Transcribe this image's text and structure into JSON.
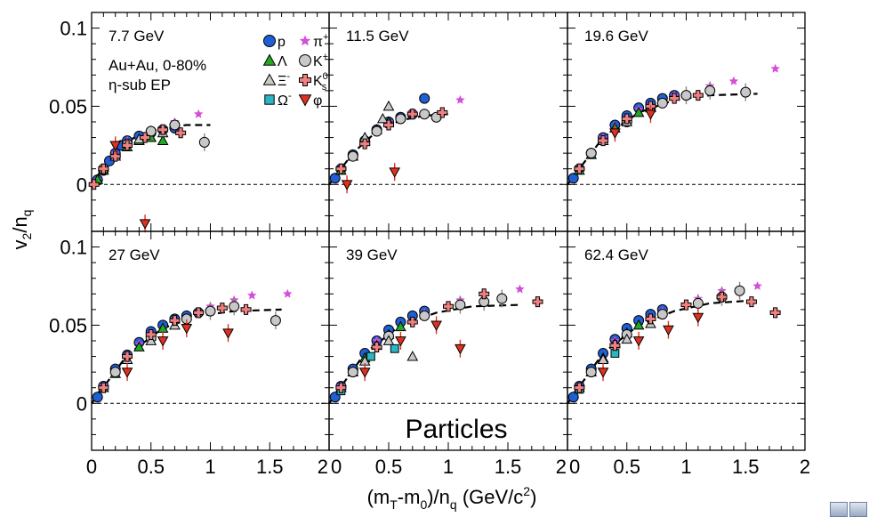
{
  "figure": {
    "ylabel_main": "v",
    "ylabel_sub": "2",
    "ylabel_sep": "/n",
    "ylabel_sub2": "q",
    "xlabel_parts": [
      "(m",
      "T",
      "-m",
      "0",
      ")/n",
      "q",
      " (GeV/c",
      "2",
      ")"
    ],
    "overlay_text": "Particles",
    "y_tick_labels": [
      "0",
      "0.05",
      "0.1"
    ],
    "x_tick_labels_first": [
      "0",
      "0.5",
      "1",
      "1.5",
      "2"
    ],
    "x_tick_labels_other": [
      "0",
      "0.5",
      "1",
      "1.5",
      "2"
    ],
    "info_lines": [
      "Au+Au,  0-80%",
      "η-sub EP"
    ],
    "legend": [
      {
        "label": "p",
        "sup": "",
        "sub": "",
        "marker": "circle",
        "color": "#1f5fd6"
      },
      {
        "label": "π",
        "sup": "+",
        "sub": "",
        "marker": "star",
        "color": "#d24fd6"
      },
      {
        "label": "Λ",
        "sup": "",
        "sub": "",
        "marker": "triangle",
        "color": "#22a822"
      },
      {
        "label": "K",
        "sup": "+",
        "sub": "",
        "marker": "open-circle",
        "color": "#c8c8c8"
      },
      {
        "label": "Ξ",
        "sup": "-",
        "sub": "",
        "marker": "triangle",
        "color": "#c8c8c8"
      },
      {
        "label": "K",
        "sup": "0",
        "sub": "s",
        "marker": "cross",
        "color": "#f08080"
      },
      {
        "label": "Ω",
        "sup": "-",
        "sub": "",
        "marker": "square",
        "color": "#2bb5c5"
      },
      {
        "label": "φ",
        "sup": "",
        "sub": "",
        "marker": "down-triangle",
        "color": "#e03020"
      }
    ]
  },
  "chart_data": [
    {
      "type": "scatter",
      "title": "7.7 GeV",
      "xlim": [
        0,
        2
      ],
      "ylim": [
        -0.03,
        0.11
      ],
      "series": [
        {
          "name": "p",
          "x": [
            0.05,
            0.1,
            0.15,
            0.2,
            0.25,
            0.3,
            0.4,
            0.5,
            0.6,
            0.7
          ],
          "y": [
            0.003,
            0.009,
            0.015,
            0.02,
            0.025,
            0.028,
            0.031,
            0.033,
            0.035,
            0.036
          ]
        },
        {
          "name": "π+",
          "x": [
            0.05,
            0.1,
            0.2,
            0.3,
            0.5,
            0.7,
            0.9
          ],
          "y": [
            0.003,
            0.01,
            0.02,
            0.028,
            0.035,
            0.04,
            0.045
          ]
        },
        {
          "name": "Λ",
          "x": [
            0.05,
            0.1,
            0.2,
            0.3,
            0.4,
            0.5,
            0.6
          ],
          "y": [
            0.003,
            0.009,
            0.018,
            0.024,
            0.028,
            0.03,
            0.028
          ]
        },
        {
          "name": "K+",
          "x": [
            0.1,
            0.3,
            0.5,
            0.7,
            0.95
          ],
          "y": [
            0.01,
            0.026,
            0.034,
            0.038,
            0.027
          ]
        },
        {
          "name": "Ξ-",
          "x": [
            0.2,
            0.4,
            0.6
          ],
          "y": [
            0.018,
            0.029,
            0.033
          ]
        },
        {
          "name": "K0s",
          "x": [
            0.02,
            0.1,
            0.2,
            0.3,
            0.45,
            0.6,
            0.75
          ],
          "y": [
            0.0,
            0.01,
            0.018,
            0.025,
            0.03,
            0.035,
            0.033
          ]
        },
        {
          "name": "φ",
          "x": [
            0.2,
            0.45
          ],
          "y": [
            0.025,
            -0.025
          ]
        }
      ],
      "fit": {
        "x": [
          0.0,
          0.2,
          0.4,
          0.6,
          0.8,
          1.0
        ],
        "y": [
          0.0,
          0.022,
          0.032,
          0.036,
          0.038,
          0.038
        ]
      }
    },
    {
      "type": "scatter",
      "title": "11.5 GeV",
      "xlim": [
        0,
        2
      ],
      "ylim": [
        -0.03,
        0.11
      ],
      "series": [
        {
          "name": "p",
          "x": [
            0.05,
            0.1,
            0.2,
            0.3,
            0.4,
            0.5,
            0.6,
            0.7,
            0.8
          ],
          "y": [
            0.004,
            0.01,
            0.019,
            0.028,
            0.035,
            0.04,
            0.043,
            0.045,
            0.055
          ]
        },
        {
          "name": "π+",
          "x": [
            0.1,
            0.3,
            0.5,
            0.7,
            1.1
          ],
          "y": [
            0.01,
            0.028,
            0.04,
            0.046,
            0.054
          ]
        },
        {
          "name": "Λ",
          "x": [
            0.1,
            0.2,
            0.3,
            0.4,
            0.5
          ],
          "y": [
            0.009,
            0.018,
            0.028,
            0.035,
            0.04
          ]
        },
        {
          "name": "K+",
          "x": [
            0.2,
            0.4,
            0.6,
            0.8,
            0.9
          ],
          "y": [
            0.018,
            0.034,
            0.042,
            0.045,
            0.043
          ]
        },
        {
          "name": "Ξ-",
          "x": [
            0.3,
            0.45,
            0.5
          ],
          "y": [
            0.03,
            0.042,
            0.05
          ]
        },
        {
          "name": "K0s",
          "x": [
            0.1,
            0.3,
            0.5,
            0.7,
            0.95
          ],
          "y": [
            0.01,
            0.026,
            0.038,
            0.045,
            0.046
          ]
        },
        {
          "name": "φ",
          "x": [
            0.15,
            0.55
          ],
          "y": [
            0.0,
            0.008
          ]
        }
      ],
      "fit": {
        "x": [
          0.0,
          0.2,
          0.4,
          0.6,
          0.8,
          1.0
        ],
        "y": [
          0.0,
          0.02,
          0.034,
          0.041,
          0.044,
          0.045
        ]
      }
    },
    {
      "type": "scatter",
      "title": "19.6 GeV",
      "xlim": [
        0,
        2
      ],
      "ylim": [
        -0.03,
        0.11
      ],
      "series": [
        {
          "name": "p",
          "x": [
            0.05,
            0.1,
            0.2,
            0.3,
            0.4,
            0.5,
            0.6,
            0.7,
            0.8,
            0.9
          ],
          "y": [
            0.004,
            0.01,
            0.02,
            0.03,
            0.038,
            0.044,
            0.049,
            0.052,
            0.055,
            0.057
          ]
        },
        {
          "name": "π+",
          "x": [
            0.1,
            0.3,
            0.6,
            0.9,
            1.2,
            1.4,
            1.75
          ],
          "y": [
            0.01,
            0.03,
            0.048,
            0.057,
            0.063,
            0.066,
            0.074
          ]
        },
        {
          "name": "Λ",
          "x": [
            0.1,
            0.2,
            0.3,
            0.4,
            0.5,
            0.6,
            0.7
          ],
          "y": [
            0.009,
            0.019,
            0.028,
            0.036,
            0.042,
            0.046,
            0.05
          ]
        },
        {
          "name": "K+",
          "x": [
            0.2,
            0.5,
            0.8,
            1.0,
            1.2,
            1.5
          ],
          "y": [
            0.02,
            0.04,
            0.052,
            0.057,
            0.06,
            0.059
          ]
        },
        {
          "name": "Ξ-",
          "x": [
            0.3,
            0.5,
            0.7
          ],
          "y": [
            0.028,
            0.04,
            0.049
          ]
        },
        {
          "name": "K0s",
          "x": [
            0.1,
            0.3,
            0.5,
            0.7,
            0.9,
            1.1
          ],
          "y": [
            0.01,
            0.028,
            0.042,
            0.05,
            0.055,
            0.057
          ]
        },
        {
          "name": "φ",
          "x": [
            0.4,
            0.7
          ],
          "y": [
            0.033,
            0.045
          ]
        }
      ],
      "fit": {
        "x": [
          0.0,
          0.3,
          0.6,
          0.9,
          1.2,
          1.6
        ],
        "y": [
          0.0,
          0.03,
          0.046,
          0.054,
          0.057,
          0.058
        ]
      }
    },
    {
      "type": "scatter",
      "title": "27 GeV",
      "xlim": [
        0,
        2
      ],
      "ylim": [
        -0.03,
        0.11
      ],
      "series": [
        {
          "name": "p",
          "x": [
            0.05,
            0.1,
            0.2,
            0.3,
            0.4,
            0.5,
            0.6,
            0.7,
            0.8,
            0.9
          ],
          "y": [
            0.004,
            0.011,
            0.022,
            0.031,
            0.039,
            0.046,
            0.05,
            0.054,
            0.056,
            0.058
          ]
        },
        {
          "name": "π+",
          "x": [
            0.1,
            0.4,
            0.7,
            1.0,
            1.2,
            1.35,
            1.65
          ],
          "y": [
            0.011,
            0.038,
            0.053,
            0.062,
            0.066,
            0.069,
            0.07
          ]
        },
        {
          "name": "Λ",
          "x": [
            0.1,
            0.2,
            0.3,
            0.4,
            0.5,
            0.6
          ],
          "y": [
            0.01,
            0.019,
            0.028,
            0.036,
            0.043,
            0.048
          ]
        },
        {
          "name": "K+",
          "x": [
            0.2,
            0.5,
            0.8,
            1.0,
            1.2,
            1.55
          ],
          "y": [
            0.02,
            0.042,
            0.054,
            0.059,
            0.062,
            0.053
          ]
        },
        {
          "name": "Ξ-",
          "x": [
            0.3,
            0.5,
            0.7
          ],
          "y": [
            0.028,
            0.04,
            0.05
          ]
        },
        {
          "name": "K0s",
          "x": [
            0.1,
            0.3,
            0.5,
            0.7,
            0.9,
            1.1,
            1.3
          ],
          "y": [
            0.01,
            0.03,
            0.044,
            0.053,
            0.058,
            0.061,
            0.06
          ]
        },
        {
          "name": "φ",
          "x": [
            0.3,
            0.6,
            0.8,
            1.15
          ],
          "y": [
            0.02,
            0.04,
            0.048,
            0.045
          ]
        }
      ],
      "fit": {
        "x": [
          0.0,
          0.3,
          0.6,
          0.9,
          1.2,
          1.6
        ],
        "y": [
          0.0,
          0.031,
          0.048,
          0.056,
          0.059,
          0.06
        ]
      }
    },
    {
      "type": "scatter",
      "title": "39 GeV",
      "xlim": [
        0,
        2
      ],
      "ylim": [
        -0.03,
        0.11
      ],
      "series": [
        {
          "name": "p",
          "x": [
            0.05,
            0.1,
            0.2,
            0.3,
            0.4,
            0.5,
            0.6,
            0.7,
            0.8
          ],
          "y": [
            0.004,
            0.011,
            0.022,
            0.032,
            0.04,
            0.047,
            0.052,
            0.056,
            0.059
          ]
        },
        {
          "name": "π+",
          "x": [
            0.1,
            0.4,
            0.8,
            1.1,
            1.3,
            1.6
          ],
          "y": [
            0.011,
            0.04,
            0.058,
            0.066,
            0.07,
            0.073
          ]
        },
        {
          "name": "Λ",
          "x": [
            0.1,
            0.2,
            0.3,
            0.4,
            0.5,
            0.6
          ],
          "y": [
            0.01,
            0.02,
            0.029,
            0.037,
            0.044,
            0.049
          ]
        },
        {
          "name": "K+",
          "x": [
            0.2,
            0.5,
            0.8,
            1.1,
            1.3,
            1.45
          ],
          "y": [
            0.02,
            0.043,
            0.056,
            0.063,
            0.065,
            0.067
          ]
        },
        {
          "name": "Ξ-",
          "x": [
            0.3,
            0.5,
            0.7
          ],
          "y": [
            0.027,
            0.04,
            0.03
          ]
        },
        {
          "name": "Ω-",
          "x": [
            0.1,
            0.35,
            0.55
          ],
          "y": [
            0.008,
            0.03,
            0.035
          ]
        },
        {
          "name": "K0s",
          "x": [
            0.1,
            0.4,
            0.7,
            1.0,
            1.3,
            1.75
          ],
          "y": [
            0.01,
            0.036,
            0.052,
            0.062,
            0.07,
            0.065
          ]
        },
        {
          "name": "φ",
          "x": [
            0.3,
            0.6,
            0.9,
            1.1
          ],
          "y": [
            0.02,
            0.04,
            0.05,
            0.035
          ]
        }
      ],
      "fit": {
        "x": [
          0.0,
          0.3,
          0.6,
          0.9,
          1.2,
          1.6
        ],
        "y": [
          0.0,
          0.032,
          0.05,
          0.058,
          0.062,
          0.063
        ]
      }
    },
    {
      "type": "scatter",
      "title": "62.4 GeV",
      "xlim": [
        0,
        2
      ],
      "ylim": [
        -0.03,
        0.11
      ],
      "series": [
        {
          "name": "p",
          "x": [
            0.05,
            0.1,
            0.2,
            0.3,
            0.4,
            0.5,
            0.6,
            0.7,
            0.8
          ],
          "y": [
            0.004,
            0.011,
            0.022,
            0.032,
            0.041,
            0.048,
            0.053,
            0.057,
            0.06
          ]
        },
        {
          "name": "π+",
          "x": [
            0.1,
            0.4,
            0.8,
            1.1,
            1.3,
            1.6
          ],
          "y": [
            0.011,
            0.04,
            0.059,
            0.067,
            0.072,
            0.075
          ]
        },
        {
          "name": "Λ",
          "x": [
            0.1,
            0.2,
            0.3,
            0.4,
            0.5,
            0.6
          ],
          "y": [
            0.01,
            0.02,
            0.029,
            0.038,
            0.045,
            0.05
          ]
        },
        {
          "name": "K+",
          "x": [
            0.2,
            0.5,
            0.8,
            1.1,
            1.3,
            1.45
          ],
          "y": [
            0.02,
            0.044,
            0.057,
            0.064,
            0.068,
            0.072
          ]
        },
        {
          "name": "Ξ-",
          "x": [
            0.3,
            0.5,
            0.7
          ],
          "y": [
            0.028,
            0.041,
            0.051
          ]
        },
        {
          "name": "Ω-",
          "x": [
            0.1,
            0.4
          ],
          "y": [
            0.009,
            0.032
          ]
        },
        {
          "name": "K0s",
          "x": [
            0.1,
            0.4,
            0.7,
            1.0,
            1.3,
            1.55,
            1.75
          ],
          "y": [
            0.01,
            0.037,
            0.054,
            0.063,
            0.068,
            0.065,
            0.058
          ]
        },
        {
          "name": "φ",
          "x": [
            0.3,
            0.6,
            0.85,
            1.1
          ],
          "y": [
            0.02,
            0.04,
            0.047,
            0.055
          ]
        }
      ],
      "fit": {
        "x": [
          0.0,
          0.3,
          0.6,
          0.9,
          1.2,
          1.6
        ],
        "y": [
          0.0,
          0.032,
          0.05,
          0.059,
          0.064,
          0.066
        ]
      }
    }
  ]
}
